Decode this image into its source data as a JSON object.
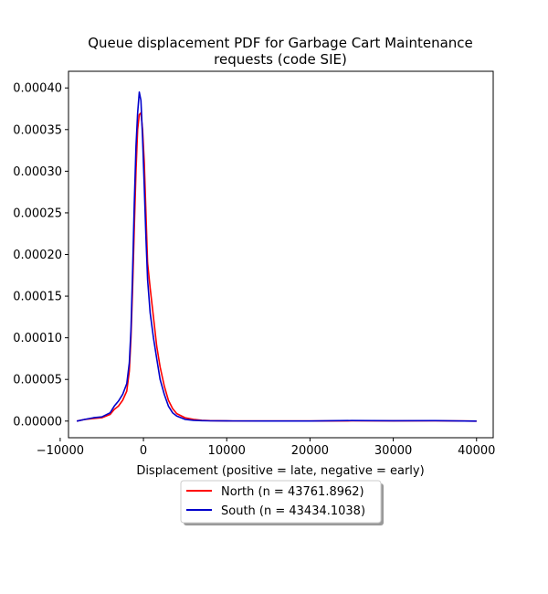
{
  "chart_data": {
    "type": "line",
    "title_lines": [
      "Queue displacement PDF for Garbage Cart Maintenance",
      "requests (code SIE)"
    ],
    "xlabel": "Displacement (positive = late, negative = early)",
    "ylabel": "",
    "xlim": [
      -9000,
      42000
    ],
    "ylim": [
      -2e-05,
      0.00042
    ],
    "x_ticks": [
      -10000,
      0,
      10000,
      20000,
      30000,
      40000
    ],
    "x_tick_labels": [
      "−10000",
      "0",
      "10000",
      "20000",
      "30000",
      "40000"
    ],
    "y_ticks": [
      0,
      5e-05,
      0.0001,
      0.00015,
      0.0002,
      0.00025,
      0.0003,
      0.00035,
      0.0004
    ],
    "y_tick_labels": [
      "0.00000",
      "0.00005",
      "0.00010",
      "0.00015",
      "0.00020",
      "0.00025",
      "0.00030",
      "0.00035",
      "0.00040"
    ],
    "legend_position": "below",
    "grid": false,
    "series": [
      {
        "name": "North (n = 43761.8962)",
        "color": "#ff0000",
        "x": [
          -8000,
          -7000,
          -6000,
          -5000,
          -4000,
          -3500,
          -3000,
          -2500,
          -2000,
          -1700,
          -1500,
          -1300,
          -1100,
          -900,
          -700,
          -500,
          -300,
          -100,
          100,
          300,
          500,
          800,
          1200,
          1600,
          2000,
          2500,
          3000,
          3500,
          4000,
          5000,
          6000,
          7000,
          8000,
          10000,
          15000,
          20000,
          25000,
          30000,
          35000,
          40000
        ],
        "y": [
          0,
          2e-06,
          3e-06,
          4e-06,
          8e-06,
          1.4e-05,
          1.8e-05,
          2.5e-05,
          3.6e-05,
          6e-05,
          0.0001,
          0.00016,
          0.00023,
          0.0003,
          0.00035,
          0.000368,
          0.00037,
          0.00035,
          0.00031,
          0.00025,
          0.00019,
          0.00016,
          0.000125,
          9e-05,
          6.5e-05,
          4.2e-05,
          2.5e-05,
          1.5e-05,
          9e-06,
          4e-06,
          2e-06,
          1e-06,
          5e-07,
          2e-07,
          1e-07,
          1e-07,
          3e-07,
          2e-07,
          3e-07,
          0
        ]
      },
      {
        "name": "South (n = 43434.1038)",
        "color": "#0000cc",
        "x": [
          -8000,
          -7000,
          -6000,
          -5000,
          -4000,
          -3500,
          -3000,
          -2500,
          -2000,
          -1700,
          -1500,
          -1300,
          -1100,
          -900,
          -700,
          -500,
          -300,
          -100,
          100,
          300,
          500,
          800,
          1200,
          1600,
          2000,
          2500,
          3000,
          3500,
          4000,
          5000,
          6000,
          7000,
          8000,
          10000,
          15000,
          20000,
          25000,
          30000,
          35000,
          40000
        ],
        "y": [
          0,
          2e-06,
          4e-06,
          5e-06,
          1e-05,
          1.8e-05,
          2.4e-05,
          3.2e-05,
          4.5e-05,
          7e-05,
          0.00011,
          0.00018,
          0.00026,
          0.00033,
          0.00037,
          0.000395,
          0.000385,
          0.00034,
          0.00028,
          0.00022,
          0.00017,
          0.00013,
          0.0001,
          7.5e-05,
          5e-05,
          3.2e-05,
          1.8e-05,
          1e-05,
          6e-06,
          2e-06,
          1e-06,
          5e-07,
          3e-07,
          2e-07,
          1e-07,
          1e-07,
          6e-07,
          4e-07,
          5e-07,
          0
        ]
      }
    ]
  }
}
